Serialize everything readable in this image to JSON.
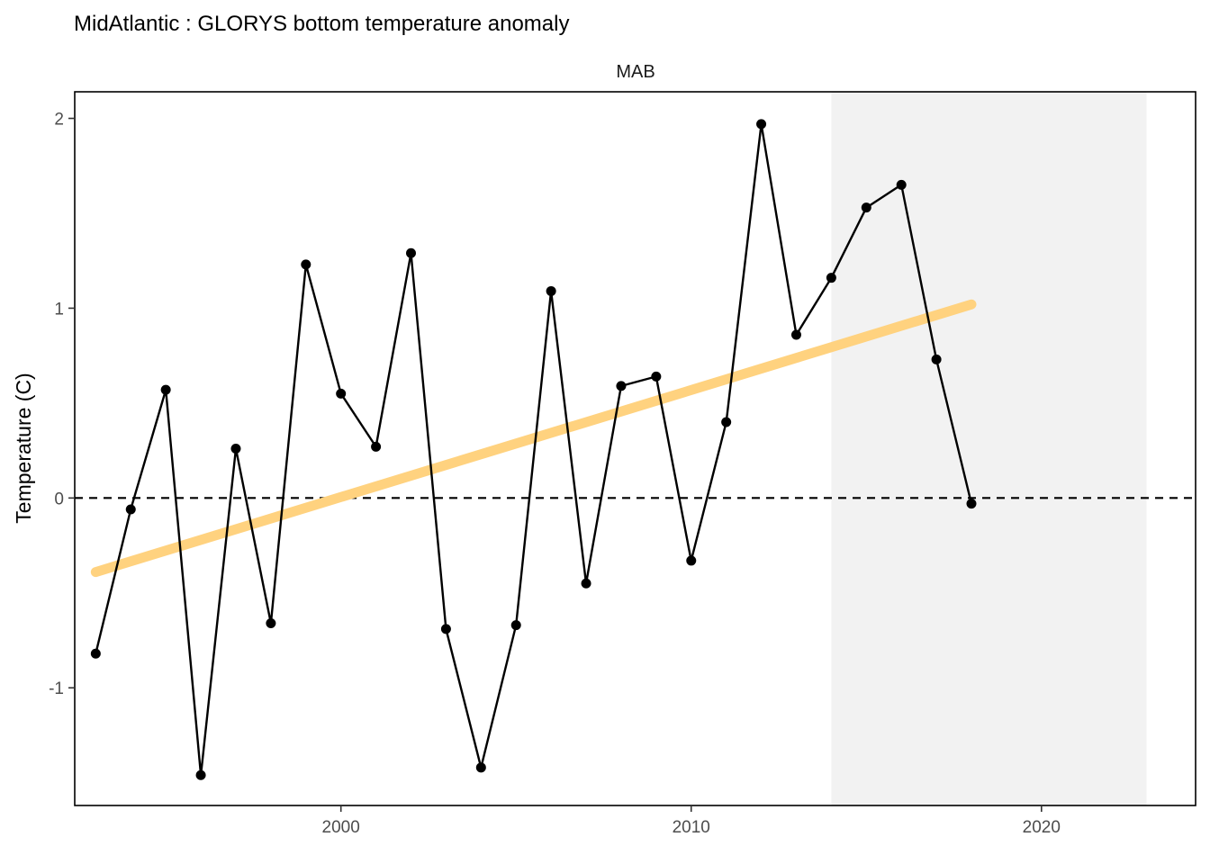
{
  "chart_data": {
    "type": "line",
    "title": "MidAtlantic : GLORYS bottom temperature anomaly",
    "facet_label": "MAB",
    "xlabel": "",
    "ylabel": "Temperature (C)",
    "xlim": [
      1992.4,
      2024.4
    ],
    "ylim": [
      -1.62,
      2.14
    ],
    "x_ticks": [
      2000,
      2010,
      2020
    ],
    "y_ticks": [
      -1,
      0,
      1,
      2
    ],
    "grid": false,
    "legend": "none",
    "series": [
      {
        "x": [
          1993,
          1994,
          1995,
          1996,
          1997,
          1998,
          1999,
          2000,
          2001,
          2002,
          2003,
          2004,
          2005,
          2006,
          2007,
          2008,
          2009,
          2010,
          2011,
          2012,
          2013,
          2014,
          2015,
          2016,
          2017,
          2018
        ],
        "values": [
          -0.82,
          -0.06,
          0.57,
          -1.46,
          0.26,
          -0.66,
          1.23,
          0.55,
          0.27,
          1.29,
          -0.69,
          -1.42,
          -0.67,
          1.09,
          -0.45,
          0.59,
          0.64,
          -0.33,
          0.4,
          1.97,
          0.86,
          1.16,
          1.53,
          1.65,
          0.73,
          -0.03
        ],
        "color": "#000000"
      }
    ],
    "trend_line": {
      "x": [
        1993,
        2018
      ],
      "values": [
        -0.39,
        1.02
      ],
      "color": "#ffd27f"
    },
    "reference_line": {
      "y": 0,
      "style": "dashed",
      "color": "#000000"
    },
    "shaded_region": {
      "x": [
        2014,
        2023
      ],
      "color": "#f2f2f2"
    }
  }
}
